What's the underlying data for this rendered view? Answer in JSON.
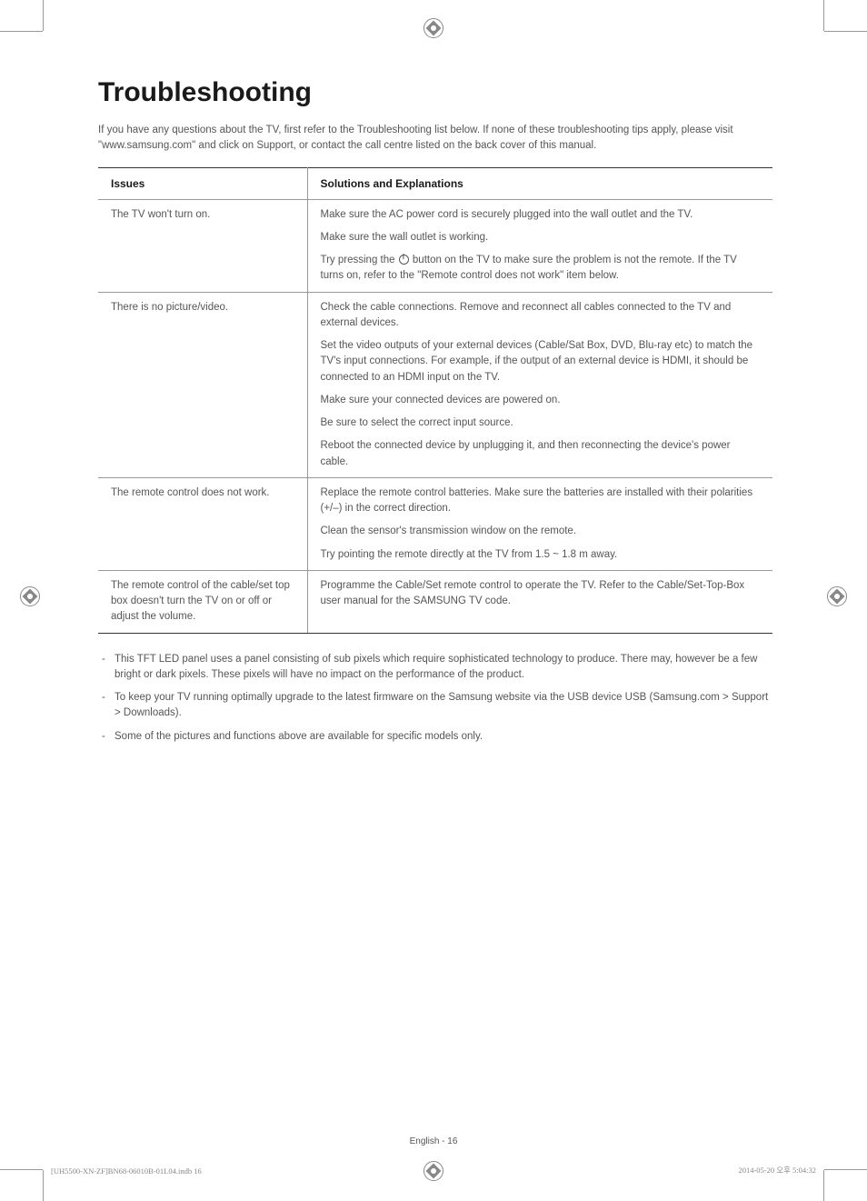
{
  "main_title": "Troubleshooting",
  "intro": "If you have any questions about the TV, first refer to the Troubleshooting list below. If none of these troubleshooting tips apply, please visit \"www.samsung.com\" and click on Support, or contact the call centre listed on the back cover of this manual.",
  "table": {
    "header_issues": "Issues",
    "header_solutions": "Solutions and Explanations",
    "rows": [
      {
        "issue": "The TV won't turn on.",
        "solutions": [
          "Make sure the AC power cord is securely plugged into the wall outlet and the TV.",
          "Make sure the wall outlet is working.",
          "Try pressing the [POWER] button on the TV to make sure the problem is not the remote. If the TV turns on, refer to the \"Remote control does not work\" item below."
        ]
      },
      {
        "issue": "There is no picture/video.",
        "solutions": [
          "Check the cable connections. Remove and reconnect all cables connected to the TV and external devices.",
          "Set the video outputs of your external devices (Cable/Sat Box, DVD, Blu-ray etc) to match the TV's input connections. For example, if the output of an external device is HDMI, it should be connected to an HDMI input on the TV.",
          "Make sure your connected devices are powered on.",
          "Be sure to select the correct input source.",
          "Reboot the connected device by unplugging it, and then reconnecting the device's power cable."
        ]
      },
      {
        "issue": "The remote control does not work.",
        "solutions": [
          "Replace the remote control batteries. Make sure the batteries are installed with their polarities (+/–) in the correct direction.",
          "Clean the sensor's transmission window on the remote.",
          "Try pointing the remote directly at the TV from 1.5 ~ 1.8 m away."
        ]
      },
      {
        "issue": "The remote control of the cable/set top box doesn't turn the TV on or off or adjust the volume.",
        "solutions": [
          "Programme the Cable/Set remote control to operate the TV. Refer to the Cable/Set-Top-Box user manual for the SAMSUNG TV code."
        ]
      }
    ]
  },
  "notes": [
    "This TFT LED panel uses a panel consisting of sub pixels which require sophisticated technology to produce. There may, however be a few bright or dark pixels. These pixels will have no impact on the performance of the product.",
    "To keep your TV running optimally upgrade to the latest firmware on the Samsung website via the USB device USB (Samsung.com > Support > Downloads).",
    "Some of the pictures and functions above are available for specific models only."
  ],
  "footer": "English - 16",
  "print_footer_left": "[UH5500-XN-ZF]BN68-06010B-01L04.indb   16",
  "print_footer_right": "2014-05-20   오후 5:04:32"
}
